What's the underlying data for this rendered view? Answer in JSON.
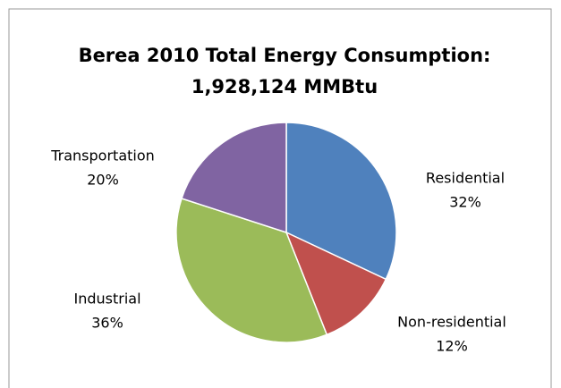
{
  "chart_data": {
    "type": "pie",
    "title": [
      "Berea 2010 Total Energy Consumption:",
      "1,928,124 MMBtu"
    ],
    "categories": [
      "Residential",
      "Non-residential",
      "Industrial",
      "Transportation"
    ],
    "values": [
      32,
      12,
      36,
      20
    ],
    "value_labels": [
      "32%",
      "12%",
      "36%",
      "20%"
    ],
    "colors": [
      "#4f81bd",
      "#c0504d",
      "#9bbb59",
      "#8064a2"
    ]
  }
}
